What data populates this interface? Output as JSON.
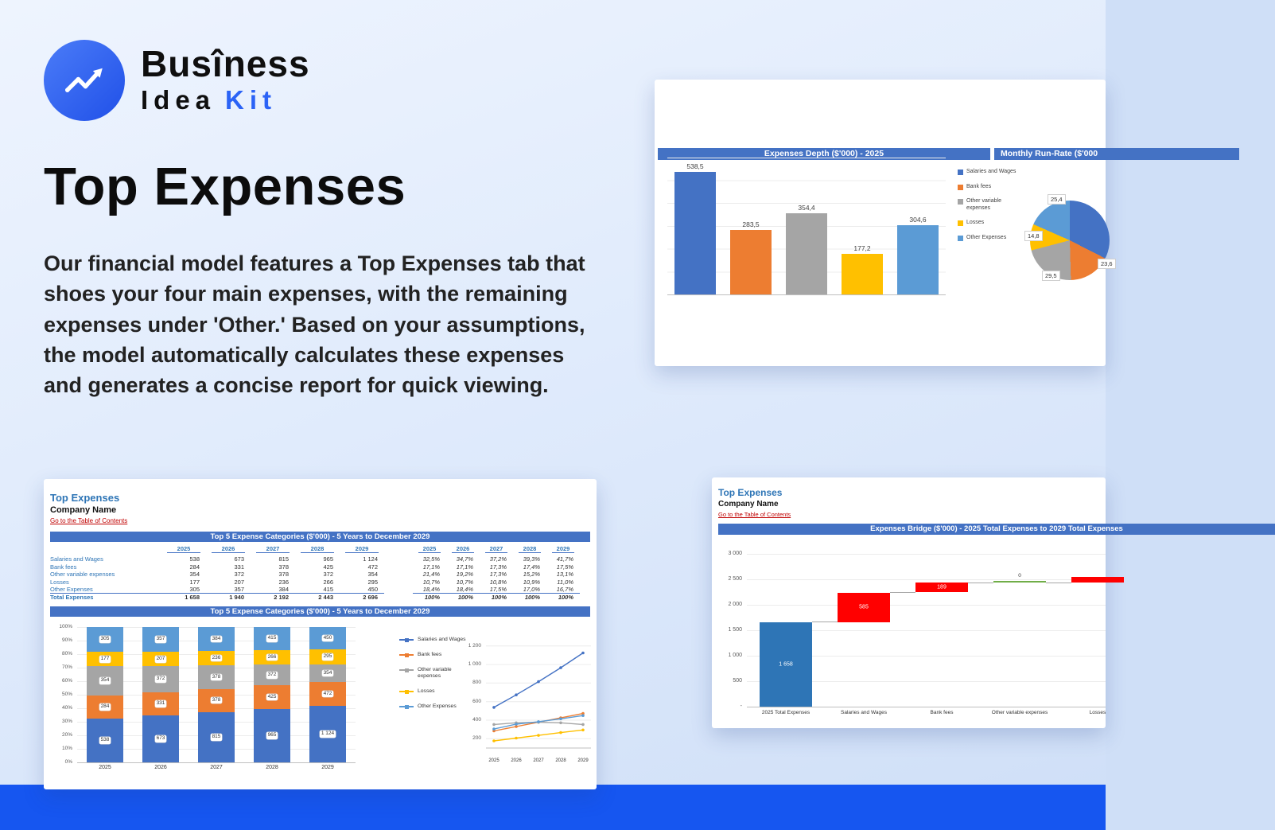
{
  "page": {
    "background_top": "#eef4fe",
    "background_bottom": "#cfdff7",
    "bottom_strip_color": "#1656f0"
  },
  "logo": {
    "word_pre": "Bus",
    "word_accent": "î",
    "word_post": "ness",
    "subtitle_word1": "Idea",
    "subtitle_word2": "Kit",
    "accent_color": "#2b63f6"
  },
  "hero": {
    "title": "Top Expenses",
    "body": "Our financial model features a Top Expenses tab that shoes your four main expenses, with the remaining expenses under 'Other.' Based on your assumptions, the model automatically calculates these expenses and generates a concise report for quick viewing."
  },
  "palette": {
    "header_bar": "#4472C4",
    "sheet_title_blue": "#2E75B6",
    "link_red": "#C00000",
    "series": {
      "salaries": "#4472C4",
      "bank": "#ED7D31",
      "other_var": "#A5A5A5",
      "losses": "#FFC000",
      "other": "#5B9BD5"
    },
    "waterfall_total": "#2E75B6",
    "waterfall_increase": "#FF0000",
    "waterfall_zero": "#70AD47"
  },
  "depth_card": {
    "left_header": "Expenses Depth ($'000) - 2025",
    "right_header": "Monthly Run-Rate ($'000",
    "chart_data": {
      "type": "bar",
      "title": "Expenses Depth ($'000) - 2025",
      "categories": [
        "Salaries and Wages",
        "Bank fees",
        "Other variable expenses",
        "Losses",
        "Other Expenses"
      ],
      "values": [
        538.5,
        283.5,
        354.4,
        177.2,
        304.6
      ],
      "value_labels": [
        "538,5",
        "283,5",
        "354,4",
        "177,2",
        "304,6"
      ],
      "ylim": [
        0,
        600
      ],
      "grid": true,
      "legend_position": "right"
    },
    "legend": [
      "Salaries and Wages",
      "Bank fees",
      "Other variable expenses",
      "Losses",
      "Other Expenses"
    ],
    "pie_chart_data": {
      "type": "pie",
      "title": "Monthly Run-Rate ($'000",
      "slices": [
        {
          "name": "Salaries and Wages",
          "value": 44.9,
          "label": ""
        },
        {
          "name": "Bank fees",
          "value": 23.6,
          "label": "23,6"
        },
        {
          "name": "Other variable expenses",
          "value": 29.5,
          "label": "29,5"
        },
        {
          "name": "Losses",
          "value": 14.8,
          "label": "14,8"
        },
        {
          "name": "Other Expenses",
          "value": 25.4,
          "label": "25,4"
        }
      ]
    }
  },
  "sheet_card": {
    "sheet_title": "Top Expenses",
    "company_name": "Company Name",
    "toc_link": "Go to the Table of Contents",
    "table_header": "Top 5 Expense Categories ($'000) - 5 Years to December 2029",
    "chart_header": "Top 5 Expense Categories ($'000) - 5 Years to December 2029",
    "years": [
      "2025",
      "2026",
      "2027",
      "2028",
      "2029"
    ],
    "rows": [
      {
        "label": "Salaries and Wages",
        "values": [
          "538",
          "673",
          "815",
          "965",
          "1 124"
        ],
        "pcts": [
          "32,5%",
          "34,7%",
          "37,2%",
          "39,3%",
          "41,7%"
        ]
      },
      {
        "label": "Bank fees",
        "values": [
          "284",
          "331",
          "378",
          "425",
          "472"
        ],
        "pcts": [
          "17,1%",
          "17,1%",
          "17,3%",
          "17,4%",
          "17,5%"
        ]
      },
      {
        "label": "Other variable expenses",
        "values": [
          "354",
          "372",
          "378",
          "372",
          "354"
        ],
        "pcts": [
          "21,4%",
          "19,2%",
          "17,3%",
          "15,2%",
          "13,1%"
        ]
      },
      {
        "label": "Losses",
        "values": [
          "177",
          "207",
          "236",
          "266",
          "295"
        ],
        "pcts": [
          "10,7%",
          "10,7%",
          "10,8%",
          "10,9%",
          "11,0%"
        ]
      },
      {
        "label": "Other Expenses",
        "values": [
          "305",
          "357",
          "384",
          "415",
          "450"
        ],
        "pcts": [
          "18,4%",
          "18,4%",
          "17,5%",
          "17,0%",
          "16,7%"
        ]
      }
    ],
    "total_row": {
      "label": "Total Expenses",
      "values": [
        "1 658",
        "1 940",
        "2 192",
        "2 443",
        "2 696"
      ],
      "pcts": [
        "100%",
        "100%",
        "100%",
        "100%",
        "100%"
      ]
    },
    "chart_data": {
      "categories": [
        "2025",
        "2026",
        "2027",
        "2028",
        "2029"
      ],
      "series": [
        {
          "name": "Salaries and Wages",
          "key": "salaries",
          "values": [
            538,
            673,
            815,
            965,
            1124
          ],
          "labels": [
            "538",
            "673",
            "815",
            "965",
            "1 124"
          ]
        },
        {
          "name": "Bank fees",
          "key": "bank",
          "values": [
            284,
            331,
            378,
            425,
            472
          ],
          "labels": [
            "284",
            "331",
            "378",
            "425",
            "472"
          ]
        },
        {
          "name": "Other variable expenses",
          "key": "other_var",
          "values": [
            354,
            372,
            378,
            372,
            354
          ],
          "labels": [
            "354",
            "372",
            "378",
            "372",
            "354"
          ]
        },
        {
          "name": "Losses",
          "key": "losses",
          "values": [
            177,
            207,
            236,
            266,
            295
          ],
          "labels": [
            "177",
            "207",
            "236",
            "266",
            "295"
          ]
        },
        {
          "name": "Other Expenses",
          "key": "other",
          "values": [
            305,
            357,
            384,
            415,
            450
          ],
          "labels": [
            "305",
            "357",
            "384",
            "415",
            "450"
          ]
        }
      ],
      "stacked_bar": {
        "type": "bar",
        "stacked": true,
        "y_ticks": [
          "100%",
          "90%",
          "80%",
          "70%",
          "60%",
          "50%",
          "40%",
          "30%",
          "20%",
          "10%",
          "0%"
        ]
      },
      "line": {
        "type": "line",
        "ylim": [
          100,
          1300
        ],
        "y_ticks": [
          {
            "label": "1 200",
            "value": 1200
          },
          {
            "label": "1 000",
            "value": 1000
          },
          {
            "label": "800",
            "value": 800
          },
          {
            "label": "600",
            "value": 600
          },
          {
            "label": "400",
            "value": 400
          },
          {
            "label": "200",
            "value": 200
          }
        ]
      }
    }
  },
  "bridge_card": {
    "sheet_title": "Top Expenses",
    "company_name": "Company Name",
    "toc_link": "Go to the Table of Contents",
    "chart_header": "Expenses Bridge ($'000) - 2025 Total Expenses to 2029 Total Expenses",
    "chart_data": {
      "type": "waterfall",
      "ymax": 3000,
      "y_ticks": [
        {
          "label": "3 000",
          "value": 3000
        },
        {
          "label": "2 500",
          "value": 2500
        },
        {
          "label": "2 000",
          "value": 2000
        },
        {
          "label": "1 500",
          "value": 1500
        },
        {
          "label": "1 000",
          "value": 1000
        },
        {
          "label": "500",
          "value": 500
        },
        {
          "label": "-",
          "value": 0
        }
      ],
      "bars": [
        {
          "category": "2025 Total Expenses",
          "start": 0,
          "end": 1658,
          "kind": "total",
          "label": "1 658"
        },
        {
          "category": "Salaries and Wages",
          "start": 1658,
          "end": 2243,
          "kind": "increase",
          "label": "585"
        },
        {
          "category": "Bank fees",
          "start": 2243,
          "end": 2432,
          "kind": "increase",
          "label": "189"
        },
        {
          "category": "Other variable expenses",
          "start": 2432,
          "end": 2432,
          "kind": "zero",
          "label": "0"
        },
        {
          "category": "Losses",
          "start": 2432,
          "end": 2550,
          "kind": "increase",
          "label": ""
        }
      ]
    }
  }
}
